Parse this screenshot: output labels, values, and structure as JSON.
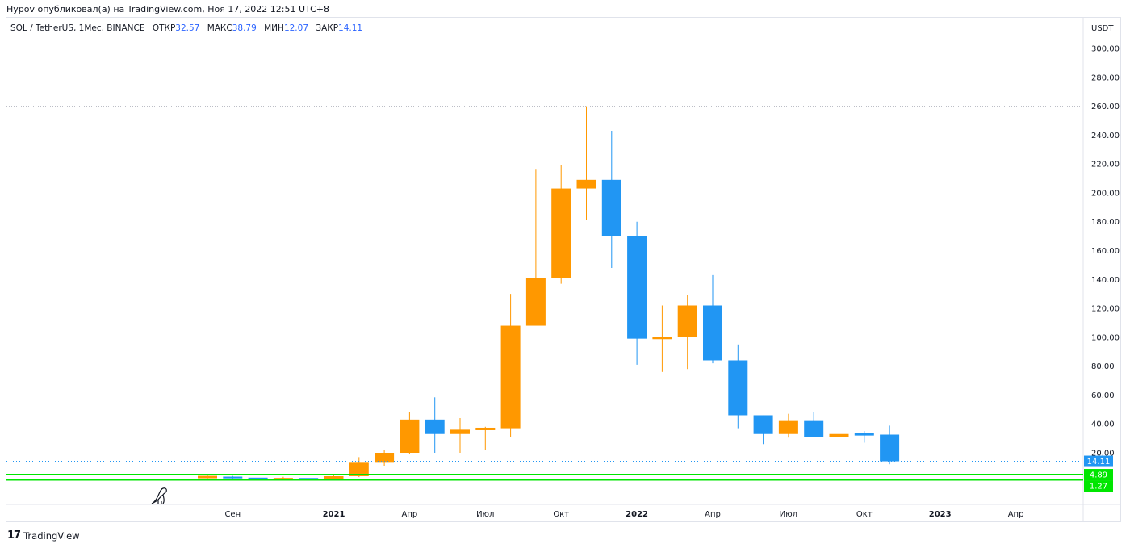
{
  "header": {
    "publish_text": "Hypov опубликовал(а) на TradingView.com, Ноя 17, 2022 12:51 UTC+8"
  },
  "legend": {
    "symbol": "SOL / TetherUS, 1Мес, BINANCE",
    "open_label": "ОТКР",
    "open_value": "32.57",
    "high_label": "МАКС",
    "high_value": "38.79",
    "low_label": "МИН",
    "low_value": "12.07",
    "close_label": "ЗАКР",
    "close_value": "14.11"
  },
  "footer": {
    "brand": "TradingView",
    "brand_mark": "17"
  },
  "colors": {
    "up": "#ff9800",
    "down": "#2196f3",
    "support": "#00e600",
    "grid_dotted": "#b2b5be"
  },
  "chart_data": {
    "type": "candlestick",
    "y_unit": "USDT",
    "ylim": [
      -40,
      320
    ],
    "y_ticks": [
      20,
      40,
      60,
      80,
      100,
      120,
      140,
      160,
      180,
      200,
      220,
      240,
      260,
      280,
      300
    ],
    "y_tick_labels": [
      "20.00",
      "40.00",
      "60.00",
      "80.00",
      "100.00",
      "120.00",
      "140.00",
      "160.00",
      "180.00",
      "200.00",
      "220.00",
      "240.00",
      "260.00",
      "280.00",
      "300.00"
    ],
    "x_ticks": [
      {
        "label": "Сен",
        "index": 1,
        "bold": false
      },
      {
        "label": "2021",
        "index": 5,
        "bold": true
      },
      {
        "label": "Апр",
        "index": 8,
        "bold": false
      },
      {
        "label": "Июл",
        "index": 11,
        "bold": false
      },
      {
        "label": "Окт",
        "index": 14,
        "bold": false
      },
      {
        "label": "2022",
        "index": 17,
        "bold": true
      },
      {
        "label": "Апр",
        "index": 20,
        "bold": false
      },
      {
        "label": "Июл",
        "index": 23,
        "bold": false
      },
      {
        "label": "Окт",
        "index": 26,
        "bold": false
      },
      {
        "label": "2023",
        "index": 29,
        "bold": true
      },
      {
        "label": "Апр",
        "index": 32,
        "bold": false
      }
    ],
    "candles": [
      {
        "t": "2020-08",
        "o": 2.9,
        "h": 4.9,
        "l": 1.1,
        "c": 3.5
      },
      {
        "t": "2020-09",
        "o": 3.5,
        "h": 4.0,
        "l": 1.0,
        "c": 2.3
      },
      {
        "t": "2020-10",
        "o": 2.3,
        "h": 2.6,
        "l": 1.1,
        "c": 1.6
      },
      {
        "t": "2020-11",
        "o": 1.6,
        "h": 3.4,
        "l": 1.3,
        "c": 1.9
      },
      {
        "t": "2020-12",
        "o": 1.9,
        "h": 2.3,
        "l": 1.4,
        "c": 1.5
      },
      {
        "t": "2021-01",
        "o": 1.5,
        "h": 4.3,
        "l": 1.3,
        "c": 3.8
      },
      {
        "t": "2021-02",
        "o": 3.8,
        "h": 17.0,
        "l": 3.2,
        "c": 13.1
      },
      {
        "t": "2021-03",
        "o": 13.1,
        "h": 22.0,
        "l": 11.0,
        "c": 20.0
      },
      {
        "t": "2021-04",
        "o": 20.0,
        "h": 48.0,
        "l": 19.0,
        "c": 43.0
      },
      {
        "t": "2021-05",
        "o": 43.0,
        "h": 58.4,
        "l": 20.0,
        "c": 33.0
      },
      {
        "t": "2021-06",
        "o": 33.0,
        "h": 44.0,
        "l": 20.0,
        "c": 36.0
      },
      {
        "t": "2021-07",
        "o": 36.0,
        "h": 38.0,
        "l": 22.0,
        "c": 37.0
      },
      {
        "t": "2021-08",
        "o": 37.0,
        "h": 130.0,
        "l": 31.0,
        "c": 108.0
      },
      {
        "t": "2021-09",
        "o": 108.0,
        "h": 216.0,
        "l": 108.0,
        "c": 141.0
      },
      {
        "t": "2021-10",
        "o": 141.0,
        "h": 219.0,
        "l": 137.0,
        "c": 203.0
      },
      {
        "t": "2021-11",
        "o": 203.0,
        "h": 260.0,
        "l": 181.0,
        "c": 209.0
      },
      {
        "t": "2021-12",
        "o": 209.0,
        "h": 243.0,
        "l": 148.0,
        "c": 170.0
      },
      {
        "t": "2022-01",
        "o": 170.0,
        "h": 180.0,
        "l": 81.0,
        "c": 99.0
      },
      {
        "t": "2022-02",
        "o": 99.0,
        "h": 122.0,
        "l": 76.0,
        "c": 100.0
      },
      {
        "t": "2022-03",
        "o": 100.0,
        "h": 129.0,
        "l": 78.0,
        "c": 122.0
      },
      {
        "t": "2022-04",
        "o": 122.0,
        "h": 143.0,
        "l": 82.0,
        "c": 84.0
      },
      {
        "t": "2022-05",
        "o": 84.0,
        "h": 95.0,
        "l": 37.0,
        "c": 46.0
      },
      {
        "t": "2022-06",
        "o": 46.0,
        "h": 46.0,
        "l": 26.0,
        "c": 33.0
      },
      {
        "t": "2022-07",
        "o": 33.0,
        "h": 47.0,
        "l": 30.5,
        "c": 42.0
      },
      {
        "t": "2022-08",
        "o": 42.0,
        "h": 48.0,
        "l": 31.0,
        "c": 31.0
      },
      {
        "t": "2022-09",
        "o": 31.0,
        "h": 38.0,
        "l": 29.0,
        "c": 33.0
      },
      {
        "t": "2022-10",
        "o": 33.0,
        "h": 35.0,
        "l": 27.0,
        "c": 32.57
      },
      {
        "t": "2022-11",
        "o": 32.57,
        "h": 38.79,
        "l": 12.07,
        "c": 14.11
      }
    ],
    "resistance": {
      "value": 260,
      "label": ""
    },
    "support_levels": [
      4.89,
      1.27
    ],
    "price_badges": [
      {
        "value": 14.11,
        "text": "14.11",
        "color": "#2196f3"
      },
      {
        "value": 4.89,
        "text": "4.89",
        "color": "#00e600"
      },
      {
        "value": 1.27,
        "text": "1.27",
        "color": "#00e600"
      }
    ],
    "drawing_icon": "dinosaur-icon"
  }
}
